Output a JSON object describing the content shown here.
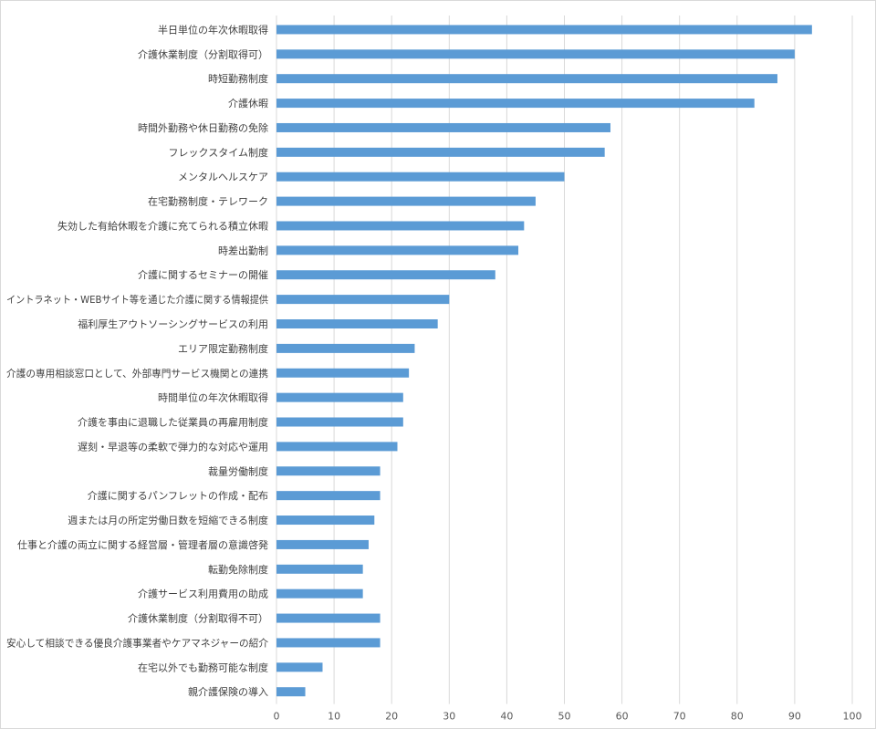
{
  "chart_data": {
    "type": "bar",
    "orientation": "horizontal",
    "title": "",
    "xlabel": "",
    "ylabel": "",
    "xlim": [
      0,
      100
    ],
    "xticks": [
      "0",
      "10",
      "20",
      "30",
      "40",
      "50",
      "60",
      "70",
      "80",
      "90",
      "100"
    ],
    "grid": true,
    "legend": "none",
    "bar_color": "#5b9bd5",
    "categories": [
      "半日単位の年次休暇取得",
      "介護休業制度（分割取得可）",
      "時短勤務制度",
      "介護休暇",
      "時間外勤務や休日勤務の免除",
      "フレックスタイム制度",
      "メンタルヘルスケア",
      "在宅勤務制度・テレワーク",
      "失効した有給休暇を介護に充てられる積立休暇",
      "時差出勤制",
      "介護に関するセミナーの開催",
      "イントラネット・WEBサイト等を通じた介護に関する情報提供",
      "福利厚生アウトソーシングサービスの利用",
      "エリア限定勤務制度",
      "介護の専用相談窓口として、外部専門サービス機関との連携",
      "時間単位の年次休暇取得",
      "介護を事由に退職した従業員の再雇用制度",
      "遅刻・早退等の柔軟で弾力的な対応や運用",
      "裁量労働制度",
      "介護に関するパンフレットの作成・配布",
      "週または月の所定労働日数を短縮できる制度",
      "仕事と介護の両立に関する経営層・管理者層の意識啓発",
      "転勤免除制度",
      "介護サービス利用費用の助成",
      "介護休業制度（分割取得不可）",
      "安心して相談できる優良介護事業者やケアマネジャーの紹介",
      "在宅以外でも勤務可能な制度",
      "親介護保険の導入"
    ],
    "values": [
      93,
      90,
      87,
      83,
      58,
      57,
      50,
      45,
      43,
      42,
      38,
      30,
      28,
      24,
      23,
      22,
      22,
      21,
      18,
      18,
      17,
      16,
      15,
      15,
      18,
      18,
      8,
      5
    ]
  }
}
